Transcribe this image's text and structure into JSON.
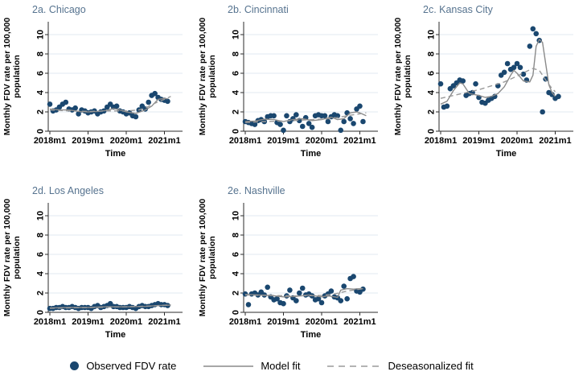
{
  "figure": {
    "background": "#ffffff",
    "style": {
      "dot_color": "#1a476f",
      "model_line_color": "#8a8a8a",
      "deseason_line_color": "#9a9a9a",
      "grid_color": "#e2eaf2",
      "axis_color": "#2b2b2b",
      "tick_text_color": "#000000",
      "title_color": "#56738f"
    },
    "legend": {
      "items": [
        {
          "label": "Observed FDV rate",
          "symbol": "dot",
          "color": "#1a476f"
        },
        {
          "label": "Model fit",
          "symbol": "solid-line",
          "color": "#8a8a8a"
        },
        {
          "label": "Deseasonalized fit",
          "symbol": "dashed-line",
          "color": "#9a9a9a"
        }
      ]
    }
  },
  "chart_data": [
    {
      "type": "scatter",
      "title": "2a. Chicago",
      "xlabel": "Time",
      "ylabel_lines": [
        "Monthly FDV rate per 100,000",
        "population"
      ],
      "x_start": "2018m1",
      "x_ticks": [
        "2018m1",
        "2019m1",
        "2020m1",
        "2021m1"
      ],
      "x_tick_months": [
        0,
        12,
        24,
        36
      ],
      "y_ticks": [
        0,
        2,
        4,
        6,
        8,
        10
      ],
      "ylim": [
        0,
        11.3
      ],
      "observed": [
        2.8,
        2.1,
        2.2,
        2.5,
        2.8,
        3.0,
        2.3,
        2.2,
        2.4,
        1.8,
        2.2,
        2.1,
        1.9,
        2.0,
        2.1,
        1.8,
        2.0,
        2.1,
        2.5,
        2.8,
        2.5,
        2.6,
        2.1,
        2.0,
        1.8,
        1.9,
        1.6,
        1.5,
        2.2,
        2.6,
        2.3,
        3.0,
        3.7,
        3.9,
        3.5,
        3.3,
        3.2,
        3.1
      ],
      "model_fit": {
        "x": [
          0,
          3,
          6,
          9,
          12,
          15,
          18,
          20,
          22,
          24,
          27,
          30,
          32,
          34,
          36,
          37
        ],
        "y": [
          2.3,
          2.2,
          2.2,
          2.05,
          2.0,
          2.05,
          2.15,
          2.35,
          2.2,
          2.0,
          1.85,
          2.2,
          2.6,
          3.3,
          3.4,
          3.35
        ]
      },
      "deseasonalized_fit": {
        "x": [
          0,
          6,
          12,
          18,
          24,
          28,
          30,
          33,
          36,
          38
        ],
        "y": [
          2.2,
          2.1,
          2.05,
          2.1,
          2.1,
          2.2,
          2.4,
          2.9,
          3.3,
          3.6
        ]
      }
    },
    {
      "type": "scatter",
      "title": "2b. Cincinnati",
      "xlabel": "Time",
      "ylabel_lines": [
        "Monthly FDV rate per 100,000",
        "population"
      ],
      "x_start": "2018m1",
      "x_ticks": [
        "2018m1",
        "2019m1",
        "2020m1",
        "2021m1"
      ],
      "x_tick_months": [
        0,
        12,
        24,
        36
      ],
      "y_ticks": [
        0,
        2,
        4,
        6,
        8,
        10
      ],
      "ylim": [
        0,
        11.3
      ],
      "observed": [
        1.0,
        0.9,
        0.8,
        0.7,
        1.1,
        1.2,
        1.0,
        1.5,
        1.6,
        1.6,
        0.9,
        0.7,
        0.1,
        1.6,
        1.0,
        1.3,
        1.7,
        1.1,
        0.5,
        1.4,
        0.8,
        0.4,
        1.6,
        1.7,
        1.6,
        1.6,
        1.0,
        1.5,
        1.7,
        1.6,
        0.1,
        1.0,
        1.9,
        1.3,
        0.8,
        2.3,
        2.6,
        1.0
      ],
      "model_fit": {
        "x": [
          0,
          3,
          6,
          9,
          12,
          15,
          18,
          21,
          24,
          27,
          29,
          31,
          33,
          35,
          36,
          38
        ],
        "y": [
          1.0,
          1.05,
          1.25,
          1.2,
          1.0,
          1.2,
          1.3,
          1.1,
          1.2,
          1.45,
          1.2,
          1.3,
          1.9,
          2.0,
          1.9,
          1.6
        ]
      },
      "deseasonalized_fit": {
        "x": [
          0,
          6,
          12,
          18,
          24,
          28,
          32,
          36,
          38
        ],
        "y": [
          0.9,
          1.0,
          1.05,
          1.15,
          1.25,
          1.35,
          1.6,
          1.8,
          1.9
        ]
      }
    },
    {
      "type": "scatter",
      "title": "2c. Kansas City",
      "xlabel": "Time",
      "ylabel_lines": [
        "Monthly FDV rate per 100,000",
        "population"
      ],
      "x_start": "2018m1",
      "x_ticks": [
        "2018m1",
        "2019m1",
        "2020m1",
        "2021m1"
      ],
      "x_tick_months": [
        0,
        12,
        24,
        36
      ],
      "y_ticks": [
        0,
        2,
        4,
        6,
        8,
        10
      ],
      "ylim": [
        0,
        11.3
      ],
      "observed": [
        4.9,
        2.5,
        2.6,
        4.4,
        4.7,
        5.0,
        5.3,
        5.2,
        3.7,
        3.9,
        4.0,
        4.9,
        3.5,
        3.0,
        2.9,
        3.2,
        3.4,
        3.6,
        4.7,
        5.8,
        6.1,
        7.0,
        6.4,
        6.6,
        7.0,
        6.6,
        5.9,
        5.3,
        8.8,
        10.6,
        10.1,
        9.4,
        2.0,
        5.4,
        4.0,
        3.8,
        3.4,
        3.6
      ],
      "model_fit": {
        "x": [
          0,
          2,
          4,
          6,
          7,
          9,
          12,
          14,
          16,
          18,
          20,
          22,
          23,
          24,
          26,
          28,
          29,
          30,
          31,
          32,
          33,
          34,
          35,
          36
        ],
        "y": [
          2.8,
          3.1,
          4.2,
          5.0,
          4.9,
          3.9,
          3.7,
          3.5,
          3.6,
          3.9,
          4.6,
          5.8,
          6.3,
          6.0,
          5.2,
          5.1,
          5.8,
          8.8,
          9.5,
          9.2,
          7.0,
          4.8,
          4.0,
          3.6
        ]
      },
      "deseasonalized_fit": {
        "x": [
          0,
          4,
          8,
          12,
          16,
          20,
          24,
          27,
          29,
          31,
          33,
          35,
          36
        ],
        "y": [
          3.4,
          3.7,
          4.0,
          4.3,
          4.7,
          5.1,
          5.7,
          6.2,
          6.5,
          6.3,
          5.3,
          4.4,
          4.1
        ]
      }
    },
    {
      "type": "scatter",
      "title": "2d. Los Angeles",
      "xlabel": "Time",
      "ylabel_lines": [
        "Monthly FDV rate per 100,000",
        "population"
      ],
      "x_start": "2018m1",
      "x_ticks": [
        "2018m1",
        "2019m1",
        "2020m1",
        "2021m1"
      ],
      "x_tick_months": [
        0,
        12,
        24,
        36
      ],
      "y_ticks": [
        0,
        2,
        4,
        6,
        8,
        10
      ],
      "ylim": [
        0,
        11.3
      ],
      "observed": [
        0.4,
        0.4,
        0.5,
        0.5,
        0.6,
        0.5,
        0.5,
        0.6,
        0.5,
        0.4,
        0.5,
        0.5,
        0.5,
        0.4,
        0.6,
        0.7,
        0.5,
        0.6,
        0.7,
        0.9,
        0.6,
        0.6,
        0.5,
        0.5,
        0.5,
        0.6,
        0.5,
        0.4,
        0.6,
        0.7,
        0.6,
        0.6,
        0.7,
        0.8,
        0.9,
        0.8,
        0.8,
        0.7
      ],
      "model_fit": {
        "x": [
          0,
          6,
          12,
          18,
          24,
          30,
          34,
          38
        ],
        "y": [
          0.45,
          0.5,
          0.5,
          0.58,
          0.57,
          0.62,
          0.7,
          0.75
        ]
      },
      "deseasonalized_fit": {
        "x": [
          0,
          12,
          24,
          32,
          38
        ],
        "y": [
          0.42,
          0.5,
          0.58,
          0.65,
          0.78
        ]
      }
    },
    {
      "type": "scatter",
      "title": "2e. Nashville",
      "xlabel": "Time",
      "ylabel_lines": [
        "Monthly FDV rate per 100,000",
        "population"
      ],
      "x_start": "2018m1",
      "x_ticks": [
        "2018m1",
        "2019m1",
        "2020m1",
        "2021m1"
      ],
      "x_tick_months": [
        0,
        12,
        24,
        36
      ],
      "y_ticks": [
        0,
        2,
        4,
        6,
        8,
        10
      ],
      "ylim": [
        0,
        11.3
      ],
      "observed": [
        1.9,
        0.8,
        1.9,
        2.0,
        1.8,
        2.1,
        1.8,
        2.6,
        1.6,
        1.3,
        1.4,
        1.0,
        0.9,
        1.7,
        2.3,
        1.5,
        1.2,
        2.0,
        2.5,
        1.8,
        1.9,
        1.7,
        1.3,
        1.4,
        1.0,
        1.7,
        1.9,
        2.2,
        1.6,
        1.5,
        1.2,
        2.7,
        1.4,
        3.5,
        3.7,
        2.2,
        2.1,
        2.4
      ],
      "model_fit": {
        "x": [
          0,
          4,
          8,
          12,
          16,
          20,
          24,
          26,
          28,
          29,
          30,
          32,
          34,
          36,
          37
        ],
        "y": [
          1.85,
          1.8,
          1.75,
          1.6,
          1.65,
          1.8,
          1.6,
          1.7,
          1.6,
          1.55,
          2.3,
          2.45,
          2.4,
          2.45,
          2.45
        ]
      },
      "deseasonalized_fit": {
        "x": [
          0,
          8,
          16,
          24,
          28,
          32,
          36,
          37
        ],
        "y": [
          1.8,
          1.75,
          1.7,
          1.75,
          1.9,
          2.2,
          2.4,
          2.45
        ]
      }
    }
  ]
}
